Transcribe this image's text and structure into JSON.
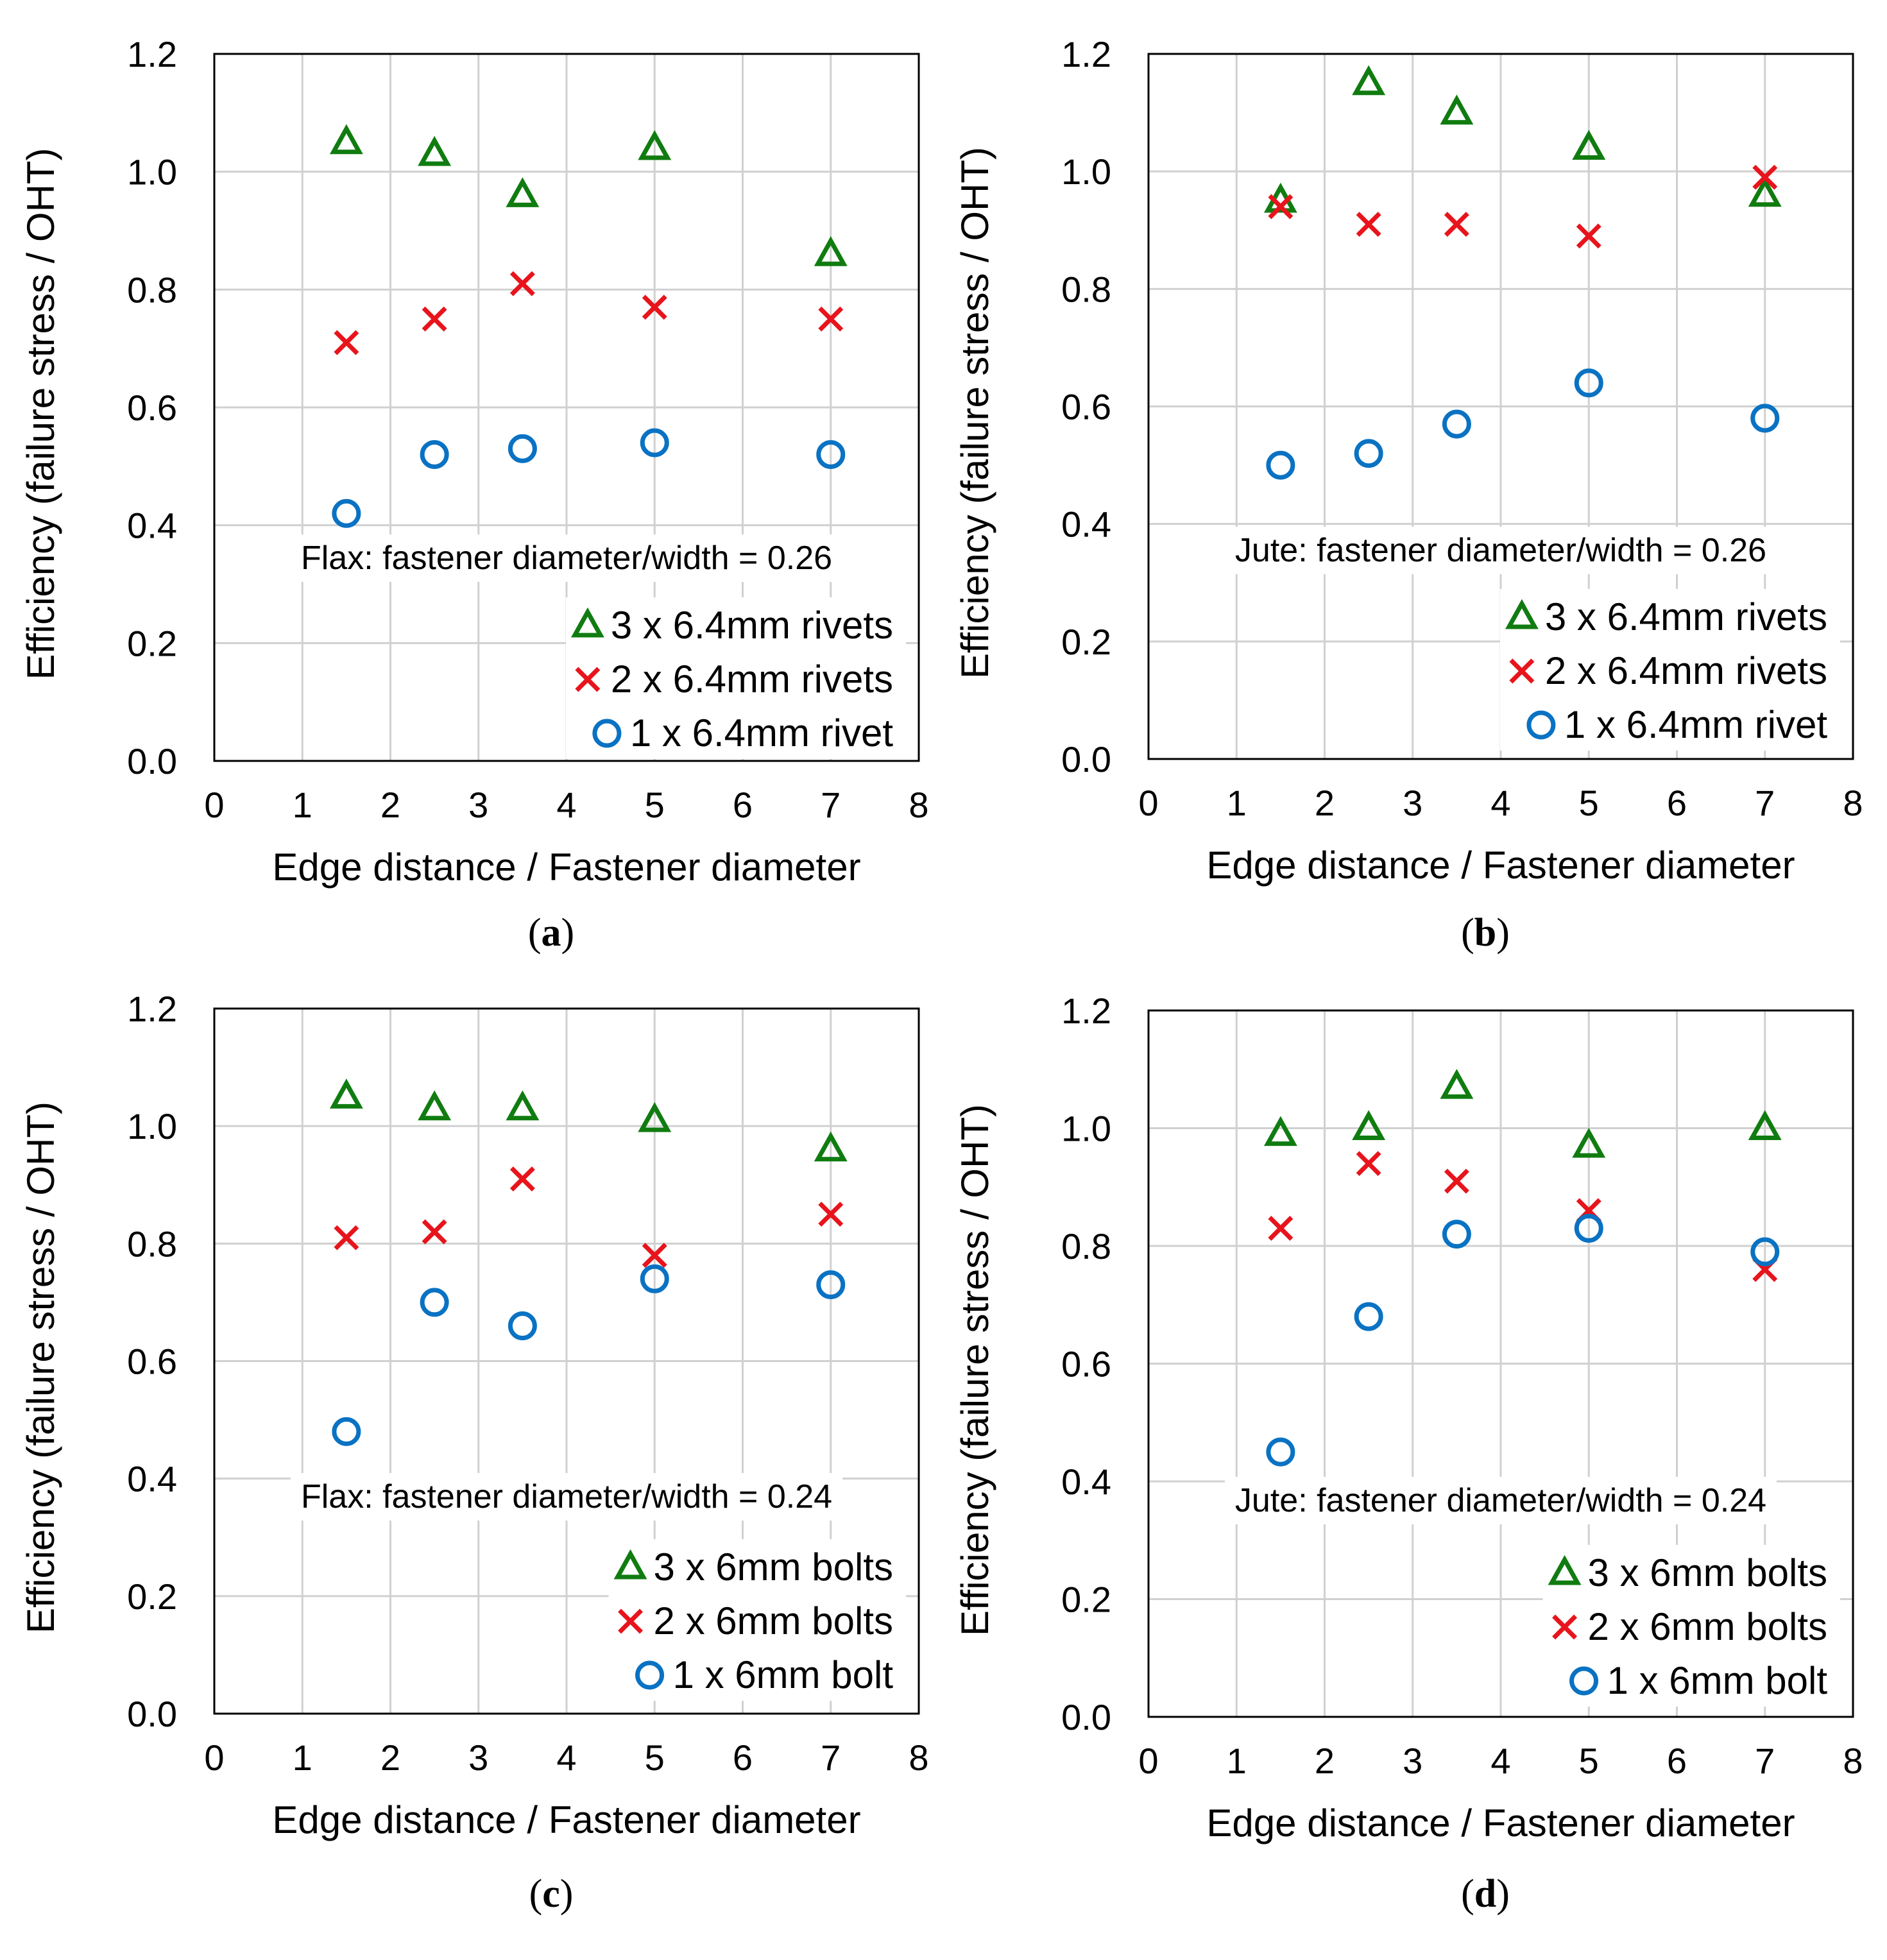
{
  "figure": {
    "colors": {
      "triangle": "#107c10",
      "cross": "#e8141c",
      "circle": "#0a72c3",
      "grid": "#d0d0d0",
      "axis": "#000000"
    }
  },
  "chart_data": [
    {
      "type": "scatter",
      "caption": "a",
      "annotation": "Flax: fastener diameter/width = 0.26",
      "xlabel": "Edge distance / Fastener diameter",
      "ylabel": "Efficiency (failure stress / OHT)",
      "xlim": [
        0,
        8
      ],
      "ylim": [
        0,
        1.2
      ],
      "xticks": [
        "0",
        "1",
        "2",
        "3",
        "4",
        "5",
        "6",
        "7",
        "8"
      ],
      "yticks": [
        "0.0",
        "0.2",
        "0.4",
        "0.6",
        "0.8",
        "1.0",
        "1.2"
      ],
      "series": [
        {
          "name": "3 x 6.4mm rivets",
          "marker": "triangle",
          "x": [
            1.5,
            2.5,
            3.5,
            5,
            7
          ],
          "y": [
            1.05,
            1.03,
            0.96,
            1.04,
            0.86
          ]
        },
        {
          "name": "2 x 6.4mm rivets",
          "marker": "cross",
          "x": [
            1.5,
            2.5,
            3.5,
            5,
            7
          ],
          "y": [
            0.71,
            0.75,
            0.81,
            0.77,
            0.75
          ]
        },
        {
          "name": "1 x 6.4mm rivet",
          "marker": "circle",
          "x": [
            1.5,
            2.5,
            3.5,
            5,
            7
          ],
          "y": [
            0.42,
            0.52,
            0.53,
            0.54,
            0.52
          ]
        }
      ]
    },
    {
      "type": "scatter",
      "caption": "b",
      "annotation": "Jute: fastener diameter/width = 0.26",
      "xlabel": "Edge distance / Fastener diameter",
      "ylabel": "Efficiency (failure stress / OHT)",
      "xlim": [
        0,
        8
      ],
      "ylim": [
        0,
        1.2
      ],
      "xticks": [
        "0",
        "1",
        "2",
        "3",
        "4",
        "5",
        "6",
        "7",
        "8"
      ],
      "yticks": [
        "0.0",
        "0.2",
        "0.4",
        "0.6",
        "0.8",
        "1.0",
        "1.2"
      ],
      "series": [
        {
          "name": "3 x 6.4mm rivets",
          "marker": "triangle",
          "x": [
            1.5,
            2.5,
            3.5,
            5,
            7
          ],
          "y": [
            0.95,
            1.15,
            1.1,
            1.04,
            0.96
          ]
        },
        {
          "name": "2 x 6.4mm rivets",
          "marker": "cross",
          "x": [
            1.5,
            2.5,
            3.5,
            5,
            7
          ],
          "y": [
            0.94,
            0.91,
            0.91,
            0.89,
            0.99
          ]
        },
        {
          "name": "1 x 6.4mm rivet",
          "marker": "circle",
          "x": [
            1.5,
            2.5,
            3.5,
            5,
            7
          ],
          "y": [
            0.5,
            0.52,
            0.57,
            0.64,
            0.58
          ]
        }
      ]
    },
    {
      "type": "scatter",
      "caption": "c",
      "annotation": "Flax: fastener diameter/width = 0.24",
      "xlabel": "Edge distance / Fastener diameter",
      "ylabel": "Efficiency (failure stress / OHT)",
      "xlim": [
        0,
        8
      ],
      "ylim": [
        0,
        1.2
      ],
      "xticks": [
        "0",
        "1",
        "2",
        "3",
        "4",
        "5",
        "6",
        "7",
        "8"
      ],
      "yticks": [
        "0.0",
        "0.2",
        "0.4",
        "0.6",
        "0.8",
        "1.0",
        "1.2"
      ],
      "series": [
        {
          "name": "3 x 6mm bolts",
          "marker": "triangle",
          "x": [
            1.5,
            2.5,
            3.5,
            5,
            7
          ],
          "y": [
            1.05,
            1.03,
            1.03,
            1.01,
            0.96
          ]
        },
        {
          "name": "2 x 6mm bolts",
          "marker": "cross",
          "x": [
            1.5,
            2.5,
            3.5,
            5,
            7
          ],
          "y": [
            0.81,
            0.82,
            0.91,
            0.78,
            0.85
          ]
        },
        {
          "name": "1 x 6mm bolt",
          "marker": "circle",
          "x": [
            1.5,
            2.5,
            3.5,
            5,
            7
          ],
          "y": [
            0.48,
            0.7,
            0.66,
            0.74,
            0.73
          ]
        }
      ]
    },
    {
      "type": "scatter",
      "caption": "d",
      "annotation": "Jute: fastener diameter/width = 0.24",
      "xlabel": "Edge distance / Fastener diameter",
      "ylabel": "Efficiency (failure stress / OHT)",
      "xlim": [
        0,
        8
      ],
      "ylim": [
        0,
        1.2
      ],
      "xticks": [
        "0",
        "1",
        "2",
        "3",
        "4",
        "5",
        "6",
        "7",
        "8"
      ],
      "yticks": [
        "0.0",
        "0.2",
        "0.4",
        "0.6",
        "0.8",
        "1.0",
        "1.2"
      ],
      "series": [
        {
          "name": "3 x 6mm bolts",
          "marker": "triangle",
          "x": [
            1.5,
            2.5,
            3.5,
            5,
            7
          ],
          "y": [
            0.99,
            1.0,
            1.07,
            0.97,
            1.0
          ]
        },
        {
          "name": "2 x 6mm bolts",
          "marker": "cross",
          "x": [
            1.5,
            2.5,
            3.5,
            5,
            7
          ],
          "y": [
            0.83,
            0.94,
            0.91,
            0.86,
            0.76
          ]
        },
        {
          "name": "1 x 6mm bolt",
          "marker": "circle",
          "x": [
            1.5,
            2.5,
            3.5,
            5,
            7
          ],
          "y": [
            0.45,
            0.68,
            0.82,
            0.83,
            0.79
          ]
        }
      ]
    }
  ]
}
